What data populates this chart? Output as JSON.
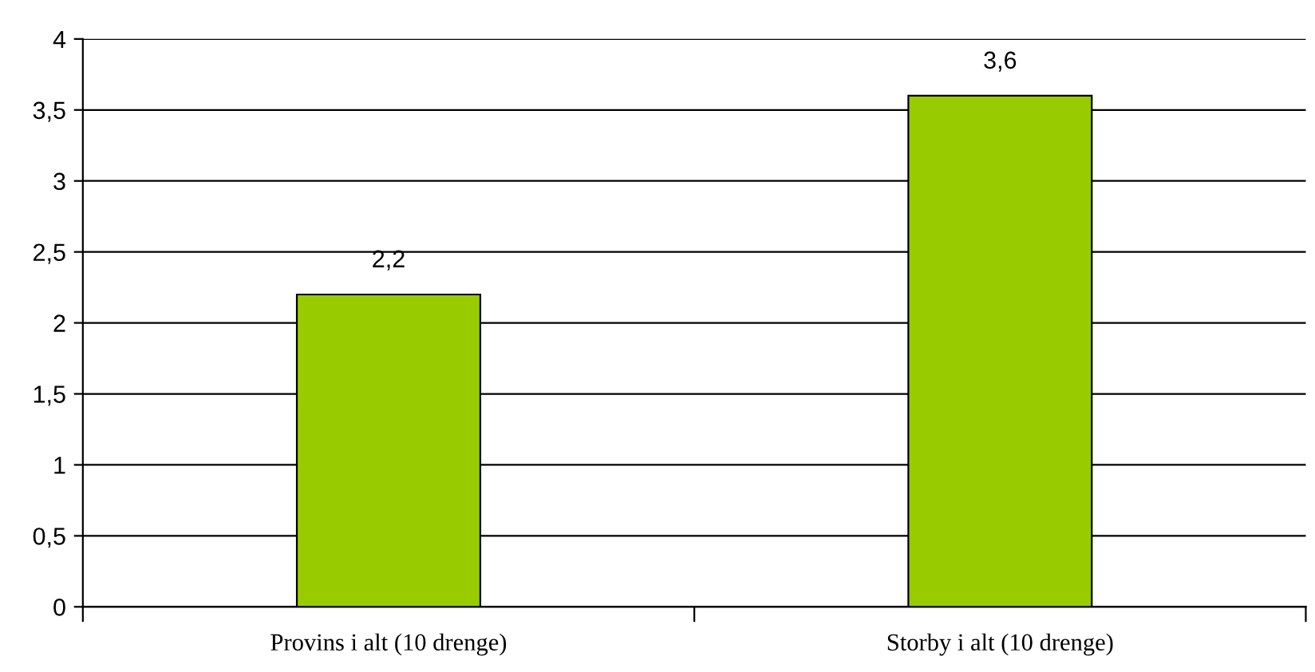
{
  "chart_data": {
    "type": "bar",
    "categories": [
      "Provins i alt (10 drenge)",
      "Storby i alt (10 drenge)"
    ],
    "values": [
      2.2,
      3.6
    ],
    "value_labels": [
      "2,2",
      "3,6"
    ],
    "color": "#99cc00",
    "ylim": [
      0,
      4
    ],
    "yticks": [
      0,
      {
        "value": 0.5,
        "label": "0,5"
      },
      1,
      {
        "value": 1.5,
        "label": "1,5"
      },
      2,
      {
        "value": 2.5,
        "label": "2,5"
      },
      3,
      {
        "value": 3.5,
        "label": "3,5"
      },
      4
    ],
    "grid": "y",
    "legend": false
  }
}
